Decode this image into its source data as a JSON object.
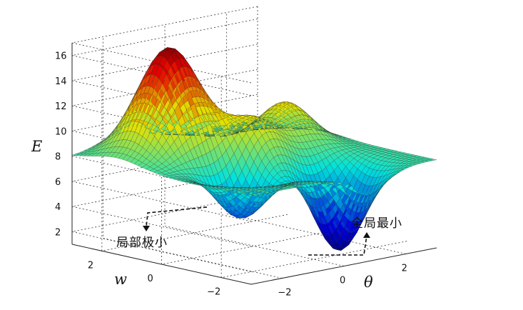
{
  "chart_data": {
    "type": "surface",
    "z_label": "E",
    "x_label": "θ",
    "y_label": "w",
    "z_ticks": [
      "2",
      "4",
      "6",
      "8",
      "10",
      "12",
      "14",
      "16"
    ],
    "x_ticks": [
      "−2",
      "0",
      "2"
    ],
    "y_ticks": [
      "2",
      "0",
      "−2"
    ],
    "zlim": [
      1,
      17
    ],
    "xlim": [
      -3,
      3
    ],
    "ylim": [
      -3,
      3
    ],
    "baseline": 8,
    "grid": true,
    "colormap": "jet",
    "features": [
      {
        "kind": "peak",
        "x": -1.3,
        "y": 1.5,
        "z": 16.6
      },
      {
        "kind": "peak",
        "x": 1.6,
        "y": 0.6,
        "z": 11.3
      },
      {
        "kind": "peak",
        "x": 0.0,
        "y": 0.0,
        "z": 11.0
      },
      {
        "kind": "local-minimum",
        "x": -1.3,
        "y": -0.9,
        "z": 4.2
      },
      {
        "kind": "global-minimum",
        "x": 0.9,
        "y": -1.9,
        "z": 1.2
      }
    ],
    "annotations": [
      {
        "id": "local-min",
        "text": "局部极小"
      },
      {
        "id": "global-min",
        "text": "全局最小"
      }
    ]
  }
}
